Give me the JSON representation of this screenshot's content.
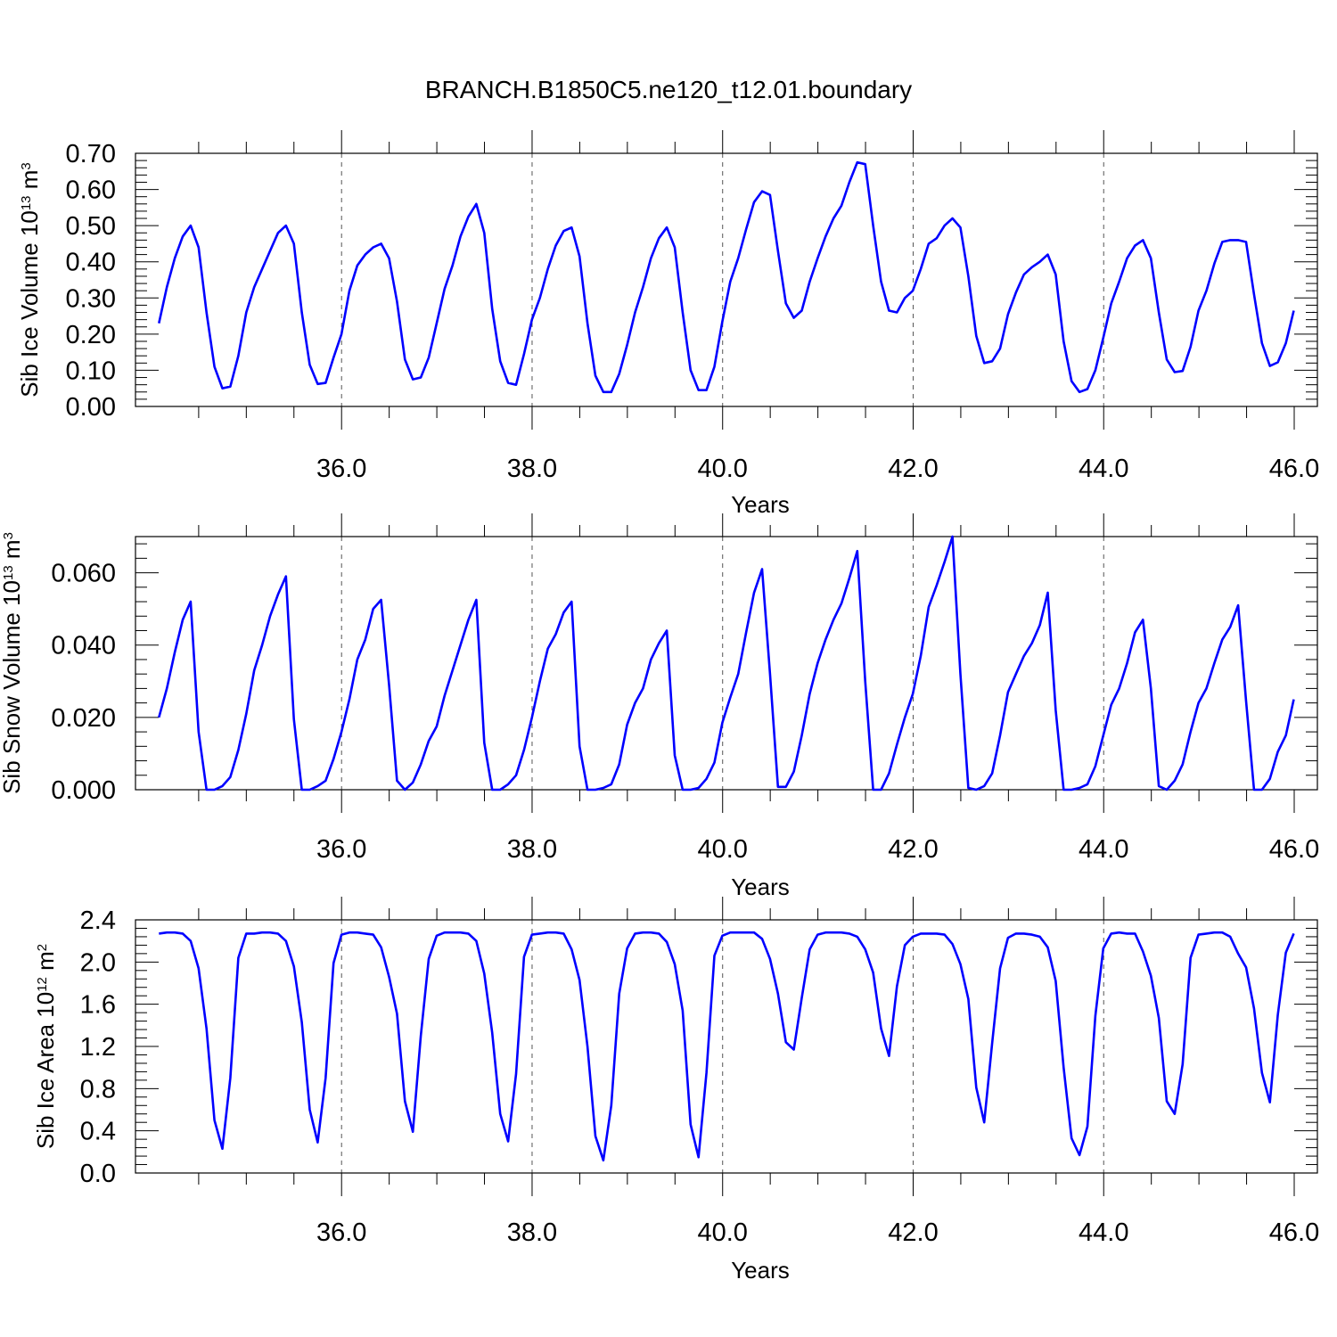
{
  "title": "BRANCH.B1850C5.ne120_t12.01.boundary",
  "chart_data": [
    {
      "type": "line",
      "ylabel": "Sib Ice Volume 10",
      "ylabel_exp": "13",
      "ylabel_unit": " m",
      "ylabel_unit_exp": "3",
      "xlabel": "Years",
      "xlim": [
        34.08,
        46.0
      ],
      "ylim": [
        0.0,
        0.7
      ],
      "xticks": [
        "36.0",
        "38.0",
        "40.0",
        "42.0",
        "44.0",
        "46.0"
      ],
      "yticks": [
        "0.00",
        "0.10",
        "0.20",
        "0.30",
        "0.40",
        "0.50",
        "0.60",
        "0.70"
      ],
      "grid": "dashed vertical at major x ticks",
      "color": "#0000ff",
      "x_start": 34.083,
      "x_step": 0.0833,
      "values": [
        0.23,
        0.33,
        0.41,
        0.47,
        0.5,
        0.44,
        0.26,
        0.11,
        0.05,
        0.055,
        0.14,
        0.26,
        0.33,
        0.38,
        0.43,
        0.48,
        0.5,
        0.45,
        0.26,
        0.115,
        0.062,
        0.065,
        0.135,
        0.2,
        0.32,
        0.39,
        0.42,
        0.44,
        0.45,
        0.41,
        0.29,
        0.13,
        0.075,
        0.08,
        0.135,
        0.23,
        0.325,
        0.39,
        0.47,
        0.525,
        0.56,
        0.48,
        0.27,
        0.125,
        0.065,
        0.06,
        0.145,
        0.24,
        0.3,
        0.38,
        0.445,
        0.485,
        0.495,
        0.415,
        0.23,
        0.085,
        0.04,
        0.04,
        0.09,
        0.17,
        0.26,
        0.33,
        0.41,
        0.465,
        0.495,
        0.44,
        0.26,
        0.1,
        0.045,
        0.045,
        0.11,
        0.235,
        0.345,
        0.41,
        0.49,
        0.565,
        0.595,
        0.585,
        0.43,
        0.285,
        0.245,
        0.265,
        0.345,
        0.41,
        0.47,
        0.52,
        0.555,
        0.62,
        0.675,
        0.67,
        0.5,
        0.345,
        0.265,
        0.26,
        0.3,
        0.32,
        0.38,
        0.45,
        0.465,
        0.5,
        0.52,
        0.495,
        0.36,
        0.195,
        0.12,
        0.125,
        0.16,
        0.255,
        0.315,
        0.365,
        0.385,
        0.4,
        0.42,
        0.365,
        0.18,
        0.07,
        0.04,
        0.048,
        0.1,
        0.19,
        0.285,
        0.345,
        0.41,
        0.445,
        0.46,
        0.41,
        0.26,
        0.13,
        0.095,
        0.098,
        0.165,
        0.265,
        0.32,
        0.395,
        0.455,
        0.46,
        0.46,
        0.455,
        0.31,
        0.175,
        0.112,
        0.122,
        0.175,
        0.265
      ]
    },
    {
      "type": "line",
      "ylabel": "Sib Snow Volume 10",
      "ylabel_exp": "13",
      "ylabel_unit": " m",
      "ylabel_unit_exp": "3",
      "xlabel": "Years",
      "xlim": [
        34.08,
        46.0
      ],
      "ylim": [
        0.0,
        0.07
      ],
      "xticks": [
        "36.0",
        "38.0",
        "40.0",
        "42.0",
        "44.0",
        "46.0"
      ],
      "yticks": [
        "0.000",
        "0.020",
        "0.040",
        "0.060"
      ],
      "grid": "dashed vertical at major x ticks",
      "color": "#0000ff",
      "x_start": 34.083,
      "x_step": 0.0833,
      "values": [
        0.02,
        0.028,
        0.038,
        0.047,
        0.052,
        0.016,
        0.0,
        0.0,
        0.001,
        0.0035,
        0.011,
        0.021,
        0.033,
        0.04,
        0.048,
        0.054,
        0.059,
        0.0195,
        0.0,
        0.0,
        0.001,
        0.0025,
        0.0085,
        0.016,
        0.025,
        0.036,
        0.0415,
        0.05,
        0.0525,
        0.029,
        0.0025,
        0.0,
        0.002,
        0.007,
        0.0135,
        0.0175,
        0.026,
        0.033,
        0.04,
        0.047,
        0.0525,
        0.013,
        0.0,
        0.0,
        0.0015,
        0.004,
        0.011,
        0.02,
        0.03,
        0.039,
        0.043,
        0.049,
        0.052,
        0.012,
        0.0,
        0.0,
        0.0005,
        0.0015,
        0.007,
        0.018,
        0.024,
        0.028,
        0.036,
        0.0405,
        0.044,
        0.0095,
        0.0,
        0.0,
        0.0005,
        0.003,
        0.0075,
        0.0185,
        0.0255,
        0.032,
        0.0435,
        0.0545,
        0.061,
        0.032,
        0.0008,
        0.0008,
        0.005,
        0.015,
        0.0265,
        0.035,
        0.0415,
        0.047,
        0.0515,
        0.0585,
        0.066,
        0.03,
        0.0,
        0.0,
        0.0045,
        0.0125,
        0.02,
        0.0265,
        0.037,
        0.0505,
        0.0565,
        0.063,
        0.07,
        0.032,
        0.0005,
        0.0,
        0.001,
        0.0045,
        0.015,
        0.027,
        0.032,
        0.037,
        0.0405,
        0.0455,
        0.0545,
        0.022,
        0.0,
        0.0,
        0.0005,
        0.0015,
        0.0065,
        0.015,
        0.0235,
        0.028,
        0.035,
        0.0435,
        0.047,
        0.028,
        0.001,
        0.0,
        0.0025,
        0.007,
        0.016,
        0.024,
        0.028,
        0.035,
        0.0415,
        0.045,
        0.051,
        0.0245,
        0.0,
        0.0,
        0.003,
        0.0105,
        0.015,
        0.025
      ]
    },
    {
      "type": "line",
      "ylabel": "Sib Ice Area 10",
      "ylabel_exp": "12",
      "ylabel_unit": " m",
      "ylabel_unit_exp": "2",
      "xlabel": "Years",
      "xlim": [
        34.08,
        46.0
      ],
      "ylim": [
        0.0,
        2.4
      ],
      "xticks": [
        "36.0",
        "38.0",
        "40.0",
        "42.0",
        "44.0",
        "46.0"
      ],
      "yticks": [
        "0.0",
        "0.4",
        "0.8",
        "1.2",
        "1.6",
        "2.0",
        "2.4"
      ],
      "grid": "dashed vertical at major x ticks",
      "color": "#0000ff",
      "x_start": 34.083,
      "x_step": 0.0833,
      "values": [
        2.27,
        2.28,
        2.28,
        2.27,
        2.2,
        1.94,
        1.37,
        0.5,
        0.23,
        0.9,
        2.04,
        2.27,
        2.27,
        2.28,
        2.28,
        2.27,
        2.2,
        1.96,
        1.43,
        0.6,
        0.29,
        0.9,
        1.99,
        2.26,
        2.28,
        2.28,
        2.27,
        2.26,
        2.14,
        1.86,
        1.51,
        0.68,
        0.39,
        1.3,
        2.03,
        2.25,
        2.28,
        2.28,
        2.28,
        2.27,
        2.2,
        1.89,
        1.33,
        0.56,
        0.3,
        0.94,
        2.05,
        2.26,
        2.27,
        2.28,
        2.28,
        2.27,
        2.12,
        1.83,
        1.2,
        0.35,
        0.12,
        0.64,
        1.7,
        2.13,
        2.27,
        2.28,
        2.28,
        2.27,
        2.19,
        1.98,
        1.54,
        0.46,
        0.15,
        0.95,
        2.06,
        2.25,
        2.28,
        2.28,
        2.28,
        2.28,
        2.22,
        2.03,
        1.7,
        1.24,
        1.17,
        1.66,
        2.12,
        2.26,
        2.28,
        2.28,
        2.28,
        2.27,
        2.24,
        2.12,
        1.9,
        1.37,
        1.11,
        1.77,
        2.16,
        2.24,
        2.27,
        2.27,
        2.27,
        2.26,
        2.17,
        1.98,
        1.65,
        0.81,
        0.48,
        1.23,
        1.94,
        2.23,
        2.27,
        2.27,
        2.26,
        2.24,
        2.14,
        1.82,
        1.0,
        0.33,
        0.17,
        0.44,
        1.49,
        2.13,
        2.27,
        2.28,
        2.27,
        2.27,
        2.1,
        1.87,
        1.47,
        0.68,
        0.56,
        1.03,
        2.04,
        2.26,
        2.27,
        2.28,
        2.28,
        2.24,
        2.08,
        1.95,
        1.56,
        0.95,
        0.67,
        1.5,
        2.09,
        2.27
      ]
    }
  ]
}
